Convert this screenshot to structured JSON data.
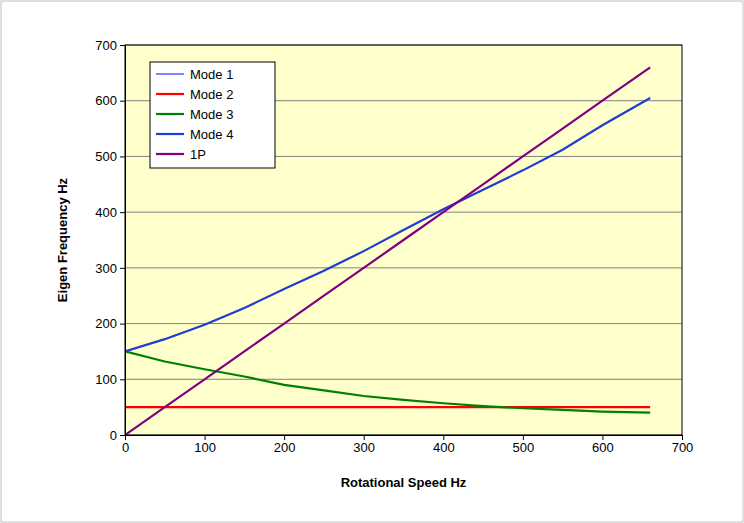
{
  "chart_data": {
    "type": "line",
    "x_label": "Rotational Speed Hz",
    "y_label": "Eigen Frequency Hz",
    "x": [
      0,
      50,
      100,
      150,
      200,
      250,
      300,
      350,
      400,
      450,
      500,
      550,
      600,
      660
    ],
    "series": [
      {
        "name": "Mode 1",
        "color": "#0000ff",
        "values": [
          150,
          172,
          198,
          228,
          262,
          295,
          330,
          368,
          405,
          440,
          475,
          512,
          556,
          605
        ]
      },
      {
        "name": "Mode 2",
        "color": "#ff0000",
        "values": [
          50,
          50,
          50,
          50,
          50,
          50,
          50,
          50,
          50,
          50,
          50,
          50,
          50,
          50
        ]
      },
      {
        "name": "Mode 3",
        "color": "#008000",
        "values": [
          150,
          132,
          118,
          105,
          90,
          80,
          70,
          63,
          57,
          52,
          48,
          45,
          42,
          40
        ]
      },
      {
        "name": "Mode 4",
        "color": "#1f3fd0",
        "values": [
          150,
          172,
          198,
          228,
          262,
          295,
          330,
          368,
          405,
          440,
          475,
          512,
          556,
          605
        ]
      },
      {
        "name": "1P",
        "color": "#800080",
        "values": [
          0,
          50,
          100,
          150,
          200,
          250,
          300,
          350,
          400,
          450,
          500,
          550,
          600,
          660
        ]
      }
    ],
    "xlim": [
      0,
      700
    ],
    "xticks": [
      0,
      100,
      200,
      300,
      400,
      500,
      600,
      700
    ],
    "ylim": [
      0,
      700
    ],
    "yticks": [
      0,
      100,
      200,
      300,
      400,
      500,
      600,
      700
    ],
    "grid": true,
    "legend": "upper left"
  }
}
